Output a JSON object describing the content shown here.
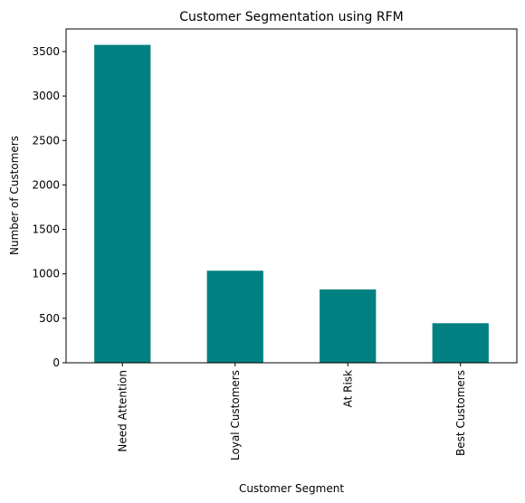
{
  "chart_data": {
    "type": "bar",
    "title": "Customer Segmentation using RFM",
    "xlabel": "Customer Segment",
    "ylabel": "Number of Customers",
    "categories": [
      "Need Attention",
      "Loyal Customers",
      "At Risk",
      "Best Customers"
    ],
    "values": [
      3575,
      1035,
      825,
      445
    ],
    "ylim": [
      0,
      3754
    ],
    "yticks": [
      0,
      500,
      1000,
      1500,
      2000,
      2500,
      3000,
      3500
    ],
    "bar_color": "#008080",
    "grid": false
  }
}
